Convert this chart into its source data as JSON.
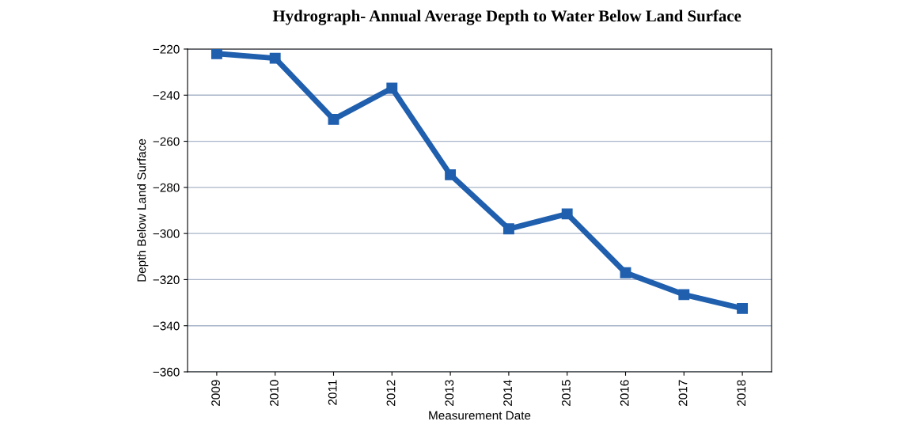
{
  "chart_data": {
    "type": "line",
    "title": "Hydrograph- Annual Average Depth to Water Below Land Surface",
    "xlabel": "Measurement Date",
    "ylabel": "Depth Below Land Surface",
    "categories": [
      "2009",
      "2010",
      "2011",
      "2012",
      "2013",
      "2014",
      "2015",
      "2016",
      "2017",
      "2018"
    ],
    "series": [
      {
        "color": "#1f5fae",
        "values": [
          -222,
          -224,
          -250.5,
          -237,
          -274.5,
          -298,
          -291.5,
          -317,
          -326.5,
          -332.5
        ]
      }
    ],
    "ylim": [
      -360,
      -220
    ],
    "yticks": [
      -360,
      -340,
      -320,
      -300,
      -280,
      -260,
      -240,
      -220
    ],
    "grid": "y",
    "marker": "square",
    "line_style": "solid"
  }
}
